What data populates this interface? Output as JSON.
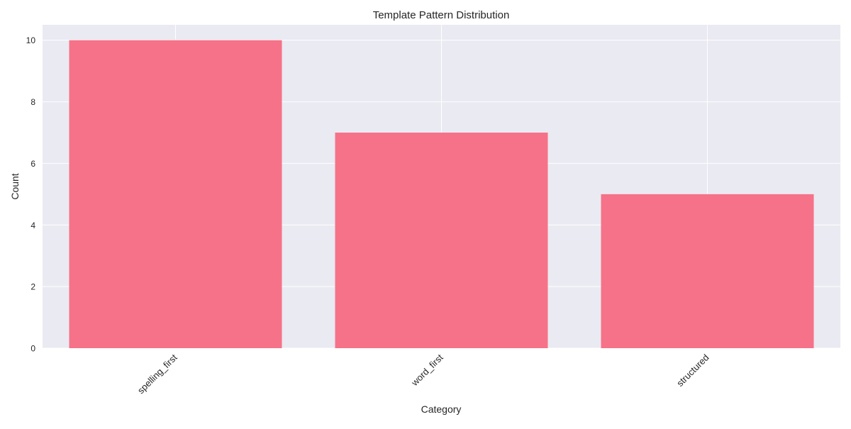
{
  "chart_data": {
    "type": "bar",
    "title": "Template Pattern Distribution",
    "xlabel": "Category",
    "ylabel": "Count",
    "categories": [
      "spelling_first",
      "word_first",
      "structured"
    ],
    "values": [
      10,
      7,
      5
    ],
    "ylim": [
      0,
      10.5
    ],
    "yticks": [
      0,
      2,
      4,
      6,
      8,
      10
    ],
    "grid": true,
    "colors": {
      "bar": "#f67288",
      "plot_background": "#eaeaf2",
      "grid": "#ffffff"
    }
  }
}
